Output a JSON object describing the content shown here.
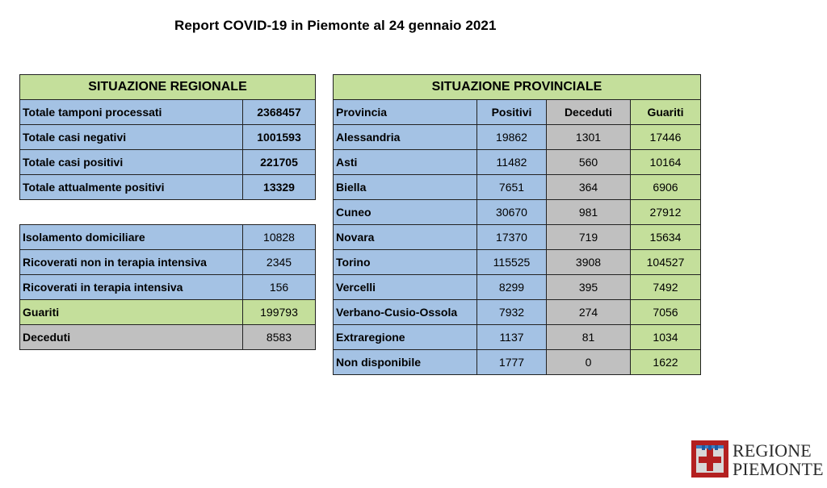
{
  "title": "Report COVID-19 in Piemonte al 24 gennaio 2021",
  "regionale": {
    "header": "SITUAZIONE REGIONALE",
    "rows": [
      {
        "label": "Totale tamponi processati",
        "value": "2368457"
      },
      {
        "label": "Totale casi negativi",
        "value": "1001593"
      },
      {
        "label": "Totale casi positivi",
        "value": "221705"
      },
      {
        "label": "Totale attualmente positivi",
        "value": "13329"
      }
    ]
  },
  "dettaglio": [
    {
      "label": "Isolamento domiciliare",
      "value": "10828"
    },
    {
      "label": "Ricoverati non in terapia intensiva",
      "value": "2345"
    },
    {
      "label": "Ricoverati in terapia intensiva",
      "value": "156"
    },
    {
      "label": "Guariti",
      "value": "199793"
    },
    {
      "label": "Deceduti",
      "value": "8583"
    }
  ],
  "provinciale": {
    "header": "SITUAZIONE PROVINCIALE",
    "columns": [
      "Provincia",
      "Positivi",
      "Deceduti",
      "Guariti"
    ],
    "rows": [
      {
        "provincia": "Alessandria",
        "positivi": "19862",
        "deceduti": "1301",
        "guariti": "17446"
      },
      {
        "provincia": "Asti",
        "positivi": "11482",
        "deceduti": "560",
        "guariti": "10164"
      },
      {
        "provincia": "Biella",
        "positivi": "7651",
        "deceduti": "364",
        "guariti": "6906"
      },
      {
        "provincia": "Cuneo",
        "positivi": "30670",
        "deceduti": "981",
        "guariti": "27912"
      },
      {
        "provincia": "Novara",
        "positivi": "17370",
        "deceduti": "719",
        "guariti": "15634"
      },
      {
        "provincia": "Torino",
        "positivi": "115525",
        "deceduti": "3908",
        "guariti": "104527"
      },
      {
        "provincia": "Vercelli",
        "positivi": "8299",
        "deceduti": "395",
        "guariti": "7492"
      },
      {
        "provincia": "Verbano-Cusio-Ossola",
        "positivi": "7932",
        "deceduti": "274",
        "guariti": "7056"
      },
      {
        "provincia": "Extraregione",
        "positivi": "1137",
        "deceduti": "81",
        "guariti": "1034"
      },
      {
        "provincia": "Non disponibile",
        "positivi": "1777",
        "deceduti": "0",
        "guariti": "1622"
      }
    ]
  },
  "logo": {
    "line1": "REGIONE",
    "line2": "PIEMONTE"
  },
  "colors": {
    "green": "#c4df9b",
    "blue": "#a4c2e4",
    "grey": "#c0c0c0",
    "logo_red": "#b32020"
  }
}
